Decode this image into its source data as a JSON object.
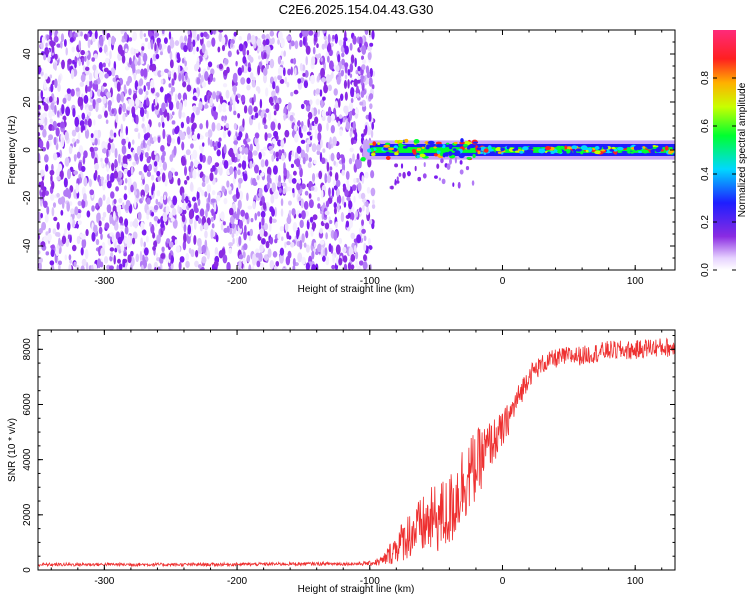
{
  "title": "C2E6.2025.154.04.43.G30",
  "chart_data": [
    {
      "type": "heatmap",
      "xlabel": "Height of straight line (km)",
      "ylabel": "Frequency (Hz)",
      "xlim": [
        -350,
        130
      ],
      "ylim": [
        -50,
        50
      ],
      "x_ticks": [
        -300,
        -200,
        -100,
        0,
        100
      ],
      "y_ticks": [
        -40,
        -20,
        0,
        20,
        40
      ],
      "noise_region_x": [
        -350,
        -97
      ],
      "signal_band": {
        "x": [
          -105,
          130
        ],
        "center_freq": 0,
        "half_width": 3
      },
      "colorbar": {
        "label": "Normalized spectral amplitude",
        "range": [
          0,
          1
        ],
        "ticks": [
          "0.0",
          "0.2",
          "0.4",
          "0.6",
          "0.8"
        ],
        "tick_values": [
          0.0,
          0.2,
          0.4,
          0.6,
          0.8
        ]
      }
    },
    {
      "type": "line",
      "xlabel": "Height of straight line (km)",
      "ylabel": "SNR (10 * v/v)",
      "xlim": [
        -350,
        130
      ],
      "ylim": [
        0,
        8700
      ],
      "x_ticks": [
        -300,
        -200,
        -100,
        0,
        100
      ],
      "y_ticks": [
        0,
        2000,
        4000,
        6000,
        8000
      ],
      "series": [
        {
          "color": "#ee3030",
          "x": [
            -350,
            -300,
            -250,
            -200,
            -150,
            -110,
            -100,
            -90,
            -80,
            -70,
            -60,
            -50,
            -40,
            -30,
            -20,
            -10,
            0,
            10,
            20,
            30,
            40,
            50,
            60,
            70,
            80,
            90,
            100,
            110,
            120,
            130
          ],
          "y": [
            200,
            210,
            200,
            210,
            230,
            230,
            250,
            350,
            900,
            1400,
            1700,
            2000,
            2200,
            3300,
            3900,
            4600,
            5100,
            6100,
            7100,
            7500,
            7700,
            7800,
            7800,
            7900,
            8000,
            8000,
            8000,
            8100,
            8100,
            8100
          ],
          "spread": [
            60,
            60,
            60,
            60,
            60,
            60,
            80,
            200,
            600,
            900,
            1100,
            1300,
            1400,
            1500,
            1300,
            900,
            700,
            500,
            400,
            350,
            350,
            350,
            350,
            350,
            350,
            350,
            350,
            350,
            350,
            350
          ]
        }
      ]
    }
  ]
}
